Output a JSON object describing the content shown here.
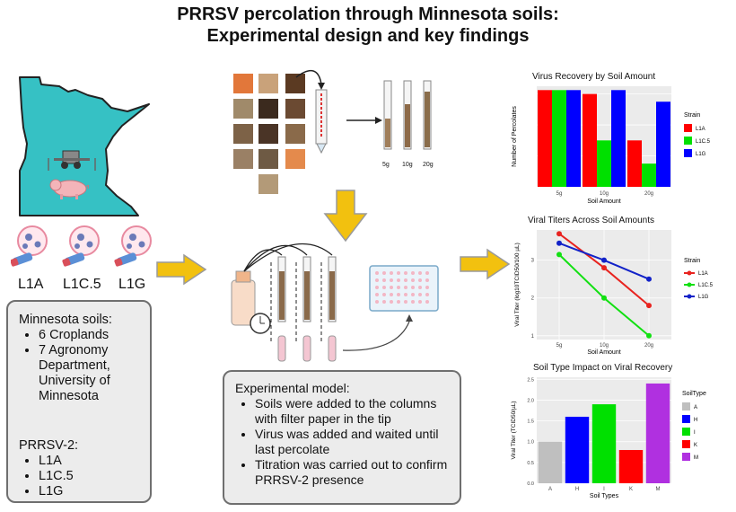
{
  "title": {
    "line1": "PRRSV percolation through Minnesota soils:",
    "line2": "Experimental design and key findings"
  },
  "strains": [
    "L1A",
    "L1C.5",
    "L1G"
  ],
  "soils_panel": {
    "heading": "Minnesota soils:",
    "soil_items": [
      "6 Croplands",
      "7 Agronomy Department, University of Minnesota"
    ],
    "prrsv_heading": "PRRSV-2:",
    "prrsv_items": [
      "L1A",
      "L1C.5",
      "L1G"
    ]
  },
  "model_panel": {
    "heading": "Experimental model:",
    "items": [
      "Soils were added to the columns with filter paper in the tip",
      "Virus was added and waited until last percolate",
      "Titration was carried out to confirm PRRSV-2 presence"
    ]
  },
  "tube_labels": [
    "5g",
    "10g",
    "20g"
  ],
  "colors": {
    "arrow": "#f2c10f",
    "minnesota": "#36c1c4",
    "panel_bg": "#ececec"
  },
  "chart_data": [
    {
      "type": "bar",
      "title": "Virus Recovery by Soil Amount",
      "xlabel": "Soil Amount",
      "ylabel": "Number of Percolates",
      "categories": [
        "5g",
        "10g",
        "20g"
      ],
      "ylim": [
        0,
        13
      ],
      "legend_title": "Strain",
      "series": [
        {
          "name": "L1A",
          "color": "#ff0000",
          "values": [
            12.5,
            12,
            6
          ]
        },
        {
          "name": "L1C.5",
          "color": "#00e000",
          "values": [
            12.5,
            6,
            3
          ]
        },
        {
          "name": "L1G",
          "color": "#0000ff",
          "values": [
            12.5,
            12.5,
            11
          ]
        }
      ],
      "grid": true
    },
    {
      "type": "line",
      "title": "Viral Titers Across Soil Amounts",
      "xlabel": "Soil Amount",
      "ylabel": "Viral Titer (log10TCID50/100 µL)",
      "categories": [
        "5g",
        "10g",
        "20g"
      ],
      "yticks": [
        "1",
        "2",
        "3"
      ],
      "ylim": [
        0.9,
        3.8
      ],
      "legend_title": "Strain",
      "series": [
        {
          "name": "L1A",
          "color": "#e8231f",
          "values": [
            3.7,
            2.8,
            1.8
          ]
        },
        {
          "name": "L1C.5",
          "color": "#12e012",
          "values": [
            3.15,
            2.0,
            1.0
          ]
        },
        {
          "name": "L1G",
          "color": "#1222c8",
          "values": [
            3.45,
            3.0,
            2.5
          ]
        }
      ],
      "grid": true
    },
    {
      "type": "bar",
      "title": "Soil Type Impact on Viral Recovery",
      "xlabel": "Soil Types",
      "ylabel": "Viral Titer (TCID50/µL)",
      "categories": [
        "A",
        "H",
        "I",
        "K",
        "M"
      ],
      "values": [
        1.0,
        1.6,
        1.9,
        0.8,
        2.4
      ],
      "colors": [
        "#bfbfbf",
        "#0000ff",
        "#00e000",
        "#ff0000",
        "#b030e0"
      ],
      "yticks": [
        "0.0",
        "0.5",
        "1.0",
        "1.5",
        "2.0",
        "2.5"
      ],
      "ylim": [
        0,
        2.55
      ],
      "legend_title": "SoilType",
      "grid": true
    }
  ]
}
